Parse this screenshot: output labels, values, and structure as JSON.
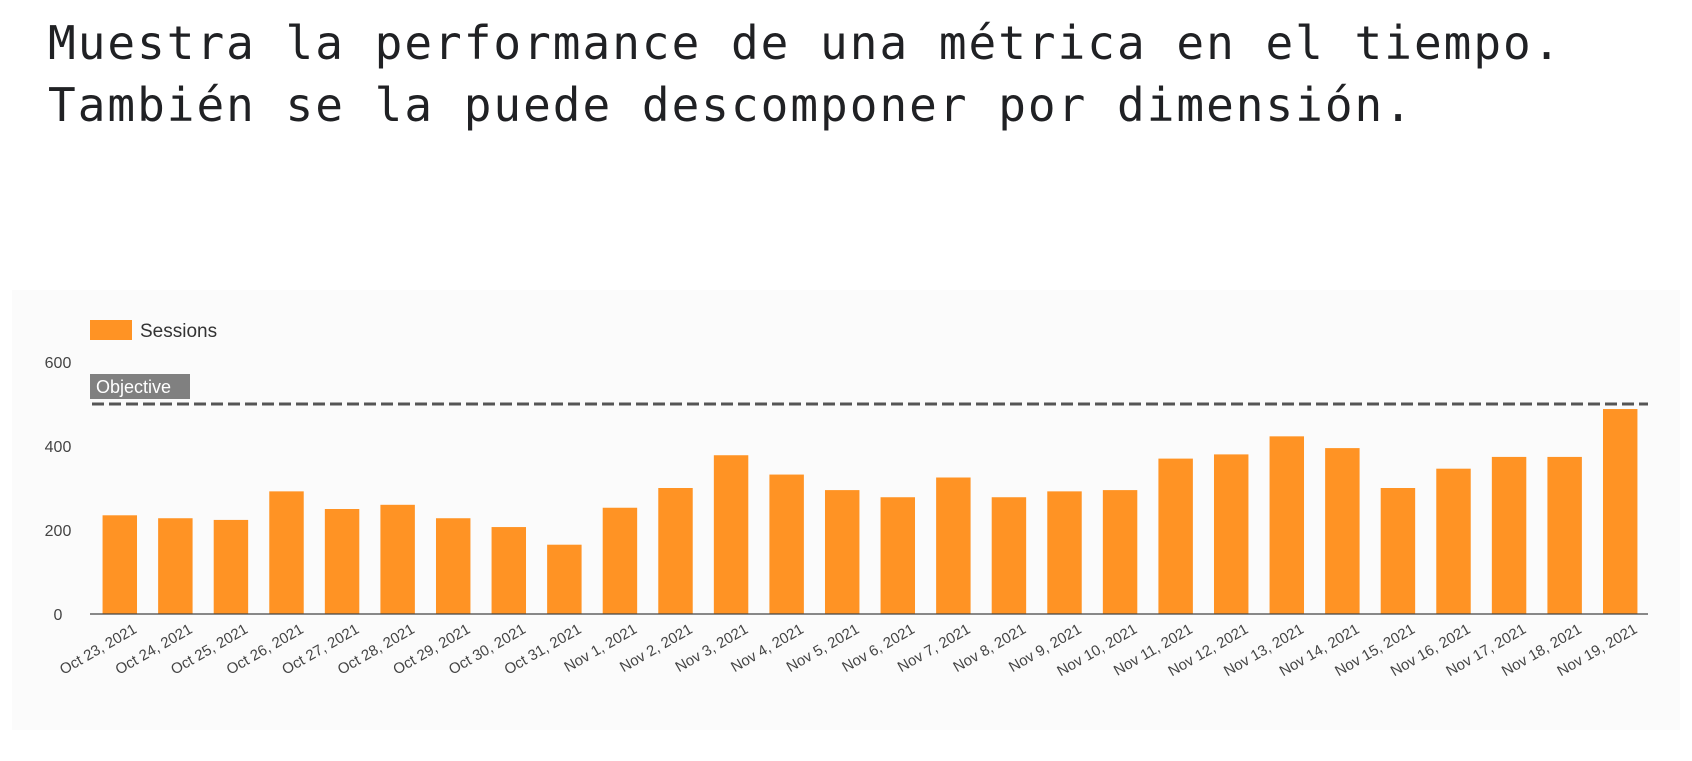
{
  "slide": {
    "heading": "Muestra la performance de una métrica en el tiempo. También se la puede descomponer por dimensión."
  },
  "colors": {
    "bar": "#ff9324",
    "reference_line": "#555555",
    "reference_label_bg": "#808080",
    "reference_label_text": "#ffffff",
    "axis_text": "#444444",
    "baseline": "#444444"
  },
  "chart_data": {
    "type": "bar",
    "title": "",
    "xlabel": "",
    "ylabel": "",
    "legend": {
      "placement": "top-left",
      "entries": [
        "Sessions"
      ]
    },
    "categories": [
      "Oct 23, 2021",
      "Oct 24, 2021",
      "Oct 25, 2021",
      "Oct 26, 2021",
      "Oct 27, 2021",
      "Oct 28, 2021",
      "Oct 29, 2021",
      "Oct 30, 2021",
      "Oct 31, 2021",
      "Nov 1, 2021",
      "Nov 2, 2021",
      "Nov 3, 2021",
      "Nov 4, 2021",
      "Nov 5, 2021",
      "Nov 6, 2021",
      "Nov 7, 2021",
      "Nov 8, 2021",
      "Nov 9, 2021",
      "Nov 10, 2021",
      "Nov 11, 2021",
      "Nov 12, 2021",
      "Nov 13, 2021",
      "Nov 14, 2021",
      "Nov 15, 2021",
      "Nov 16, 2021",
      "Nov 17, 2021",
      "Nov 18, 2021",
      "Nov 19, 2021"
    ],
    "series": [
      {
        "name": "Sessions",
        "color": "#ff9324",
        "values": [
          235,
          228,
          224,
          292,
          250,
          260,
          228,
          207,
          165,
          253,
          300,
          378,
          332,
          295,
          278,
          325,
          278,
          292,
          295,
          370,
          380,
          423,
          395,
          300,
          346,
          374,
          374,
          488
        ]
      }
    ],
    "ylim": [
      0,
      600
    ],
    "yticks": [
      0,
      200,
      400,
      600
    ],
    "ytick_labels": [
      "0",
      "200",
      "400",
      "600"
    ],
    "grid": false,
    "reference_line": {
      "label": "Objective",
      "value": 500,
      "style": "dashed"
    }
  }
}
